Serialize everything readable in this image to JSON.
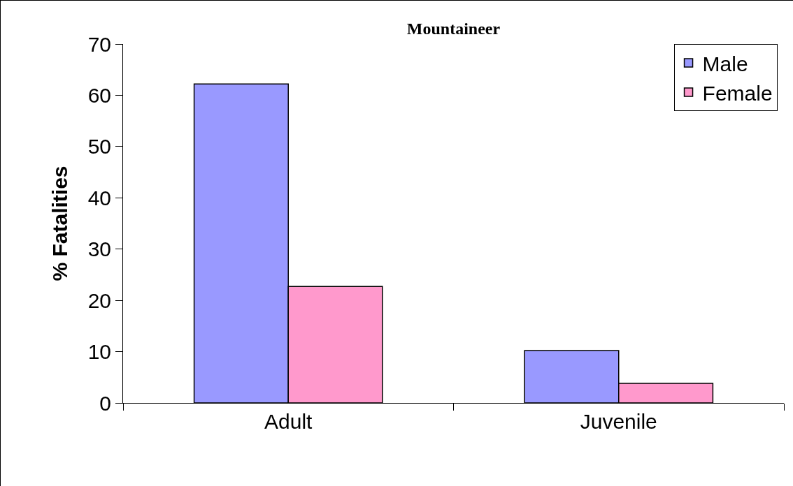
{
  "chart_data": {
    "type": "bar",
    "title": "Mountaineer",
    "ylabel": "% Fatalities",
    "categories": [
      "Adult",
      "Juvenile"
    ],
    "series": [
      {
        "name": "Male",
        "color": "#9999ff",
        "values": [
          62.2,
          10.2
        ]
      },
      {
        "name": "Female",
        "color": "#ff99cc",
        "values": [
          22.7,
          3.8
        ]
      }
    ],
    "ylim": [
      0,
      70
    ],
    "yticks": [
      0,
      10,
      20,
      30,
      40,
      50,
      60,
      70
    ],
    "grid": false,
    "legend": "top right"
  }
}
